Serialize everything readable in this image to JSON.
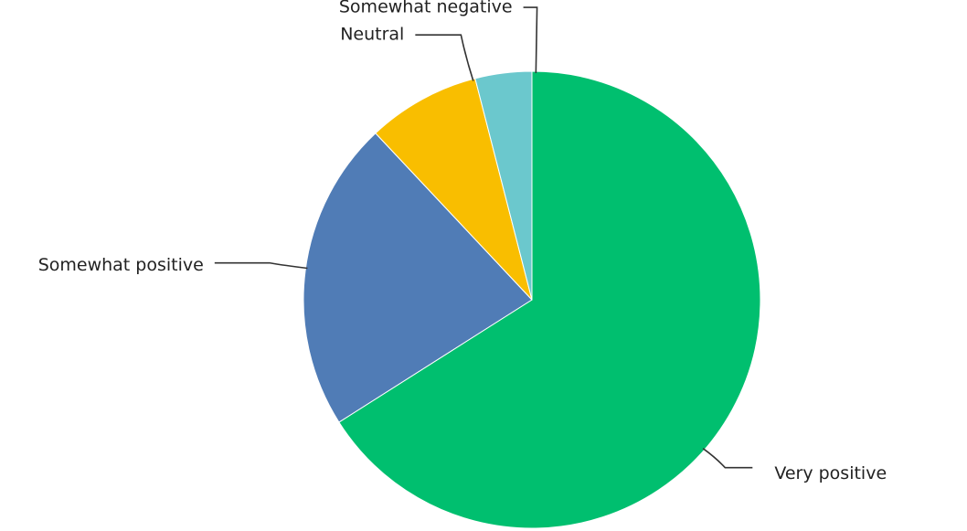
{
  "chart_data": {
    "type": "pie",
    "categories": [
      "Very positive",
      "Somewhat positive",
      "Neutral",
      "Somewhat negative"
    ],
    "values": [
      66,
      22,
      8,
      4
    ],
    "unit": "percent",
    "colors": [
      "#00bf6f",
      "#507cb6",
      "#f9be00",
      "#6bc8cd"
    ],
    "start": "12 o'clock",
    "direction": "clockwise",
    "labels_outside": true,
    "legend": "none"
  }
}
